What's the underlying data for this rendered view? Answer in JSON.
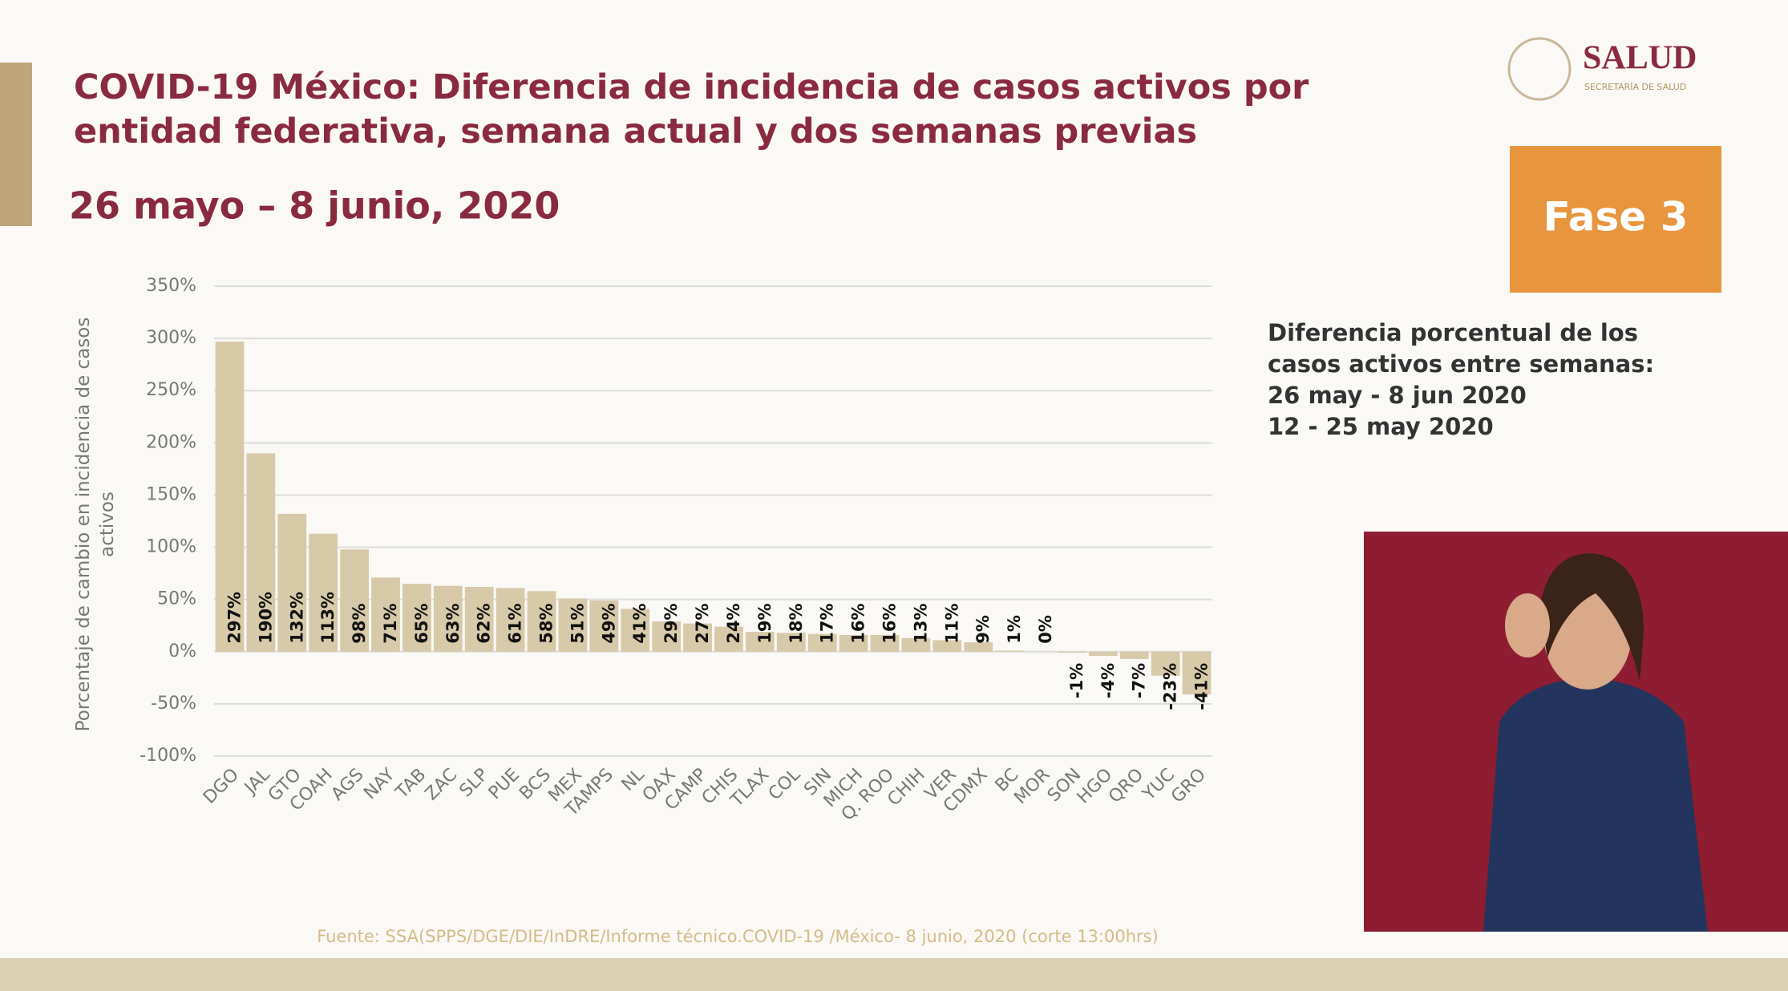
{
  "header": {
    "logo_title": "SALUD",
    "logo_subtitle": "SECRETARÍA DE SALUD",
    "phase": "Fase 3"
  },
  "chart_data": {
    "type": "bar",
    "title": "COVID-19 México: Diferencia de incidencia de casos activos por entidad federativa, semana actual y dos semanas previas",
    "subtitle": "26 mayo – 8 junio, 2020",
    "y_label": "Porcentaje de cambio en incidencia de casos activos",
    "categories": [
      "DGO",
      "JAL",
      "GTO",
      "COAH",
      "AGS",
      "NAY",
      "TAB",
      "ZAC",
      "SLP",
      "PUE",
      "BCS",
      "MEX",
      "TAMPS",
      "NL",
      "OAX",
      "CAMP",
      "CHIS",
      "TLAX",
      "COL",
      "SIN",
      "MICH",
      "Q. ROO",
      "CHIH",
      "VER",
      "CDMX",
      "BC",
      "MOR",
      "SON",
      "HGO",
      "QRO",
      "YUC",
      "GRO"
    ],
    "values": [
      297,
      190,
      132,
      113,
      98,
      71,
      65,
      63,
      62,
      61,
      58,
      51,
      49,
      41,
      29,
      27,
      24,
      19,
      18,
      17,
      16,
      16,
      13,
      11,
      9,
      1,
      0,
      -1,
      -4,
      -7,
      -23,
      -41
    ],
    "value_labels": [
      "297%",
      "190%",
      "132%",
      "113%",
      "98%",
      "71%",
      "65%",
      "63%",
      "62%",
      "61%",
      "58%",
      "51%",
      "49%",
      "41%",
      "29%",
      "27%",
      "24%",
      "19%",
      "18%",
      "17%",
      "16%",
      "16%",
      "13%",
      "11%",
      "9%",
      "1%",
      "0%",
      "-1%",
      "-4%",
      "-7%",
      "-23%",
      "-41%"
    ],
    "color": "#d8caa8",
    "ylim": [
      -100,
      350
    ],
    "yticks": [
      {
        "value": -100,
        "label": "-100%"
      },
      {
        "value": -50,
        "label": "-50%"
      },
      {
        "value": 0,
        "label": "0%"
      },
      {
        "value": 50,
        "label": "50%"
      },
      {
        "value": 100,
        "label": "100%"
      },
      {
        "value": 150,
        "label": "150%"
      },
      {
        "value": 200,
        "label": "200%"
      },
      {
        "value": 250,
        "label": "250%"
      },
      {
        "value": 300,
        "label": "300%"
      },
      {
        "value": 350,
        "label": "350%"
      }
    ],
    "grid": true
  },
  "note": [
    "Diferencia porcentual de los",
    "casos activos entre semanas:",
    "26 may - 8 jun 2020",
    "12 - 25 may 2020"
  ],
  "source": "Fuente: SSA(SPPS/DGE/DIE/InDRE/Informe técnico.COVID-19 /México- 8 junio, 2020 (corte 13:00hrs)"
}
